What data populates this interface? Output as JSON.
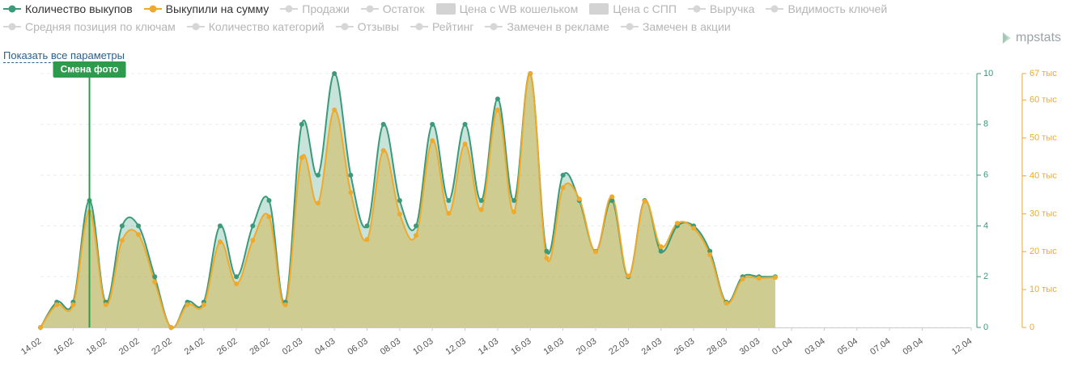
{
  "chart_data": {
    "type": "line",
    "categories": [
      "14.02",
      null,
      "16.02",
      null,
      "18.02",
      null,
      "20.02",
      null,
      "22.02",
      null,
      "24.02",
      null,
      "26.02",
      null,
      "28.02",
      null,
      "02.03",
      null,
      "04.03",
      null,
      "06.03",
      null,
      "08.03",
      null,
      "10.03",
      null,
      "12.03",
      null,
      "14.03",
      null,
      "16.03",
      null,
      "18.03",
      null,
      "20.03",
      null,
      "22.03",
      null,
      "24.03",
      null,
      "26.03",
      null,
      "28.03",
      null,
      "30.03",
      null,
      "01.04",
      null,
      "03.04",
      null,
      "05.04",
      null,
      "07.04",
      null,
      "09.04",
      null,
      null,
      "12.04"
    ],
    "series": [
      {
        "name": "Количество выкупов",
        "color": "#3a9a7a",
        "values": [
          0,
          1,
          1,
          5,
          1,
          4,
          4,
          2,
          0,
          1,
          1,
          4,
          2,
          4,
          5,
          1,
          8,
          6,
          10,
          6,
          4,
          8,
          5,
          4,
          8,
          5,
          8,
          5,
          9,
          5,
          10,
          3,
          6,
          5,
          3,
          5,
          2,
          5,
          3,
          4,
          4,
          3,
          1,
          2,
          2,
          2,
          null,
          null,
          null,
          null,
          null,
          null,
          null,
          null,
          null,
          null,
          null,
          null
        ]
      },
      {
        "name": "Выкупили на сумму",
        "color": "#f0a92a",
        "axis": "y2",
        "values": [
          0,
          6000,
          6000,
          30500,
          6000,
          23000,
          24500,
          12000,
          0,
          6000,
          6000,
          22600,
          11500,
          23000,
          29200,
          6000,
          44800,
          32800,
          57400,
          35600,
          23200,
          46700,
          29900,
          24300,
          49300,
          30100,
          48400,
          31100,
          57400,
          30500,
          67000,
          18300,
          36900,
          33900,
          20000,
          34500,
          13600,
          33300,
          21300,
          27500,
          26200,
          19200,
          6400,
          12800,
          13000,
          13200,
          null,
          null,
          null,
          null,
          null,
          null,
          null,
          null,
          null,
          null,
          null,
          null
        ]
      }
    ],
    "inactive_series": [
      {
        "name": "Продажи",
        "icon": "line"
      },
      {
        "name": "Остаток",
        "icon": "line"
      },
      {
        "name": "Цена с WB кошельком",
        "icon": "square"
      },
      {
        "name": "Цена с СПП",
        "icon": "square"
      },
      {
        "name": "Выручка",
        "icon": "line"
      },
      {
        "name": "Видимость ключей",
        "icon": "line"
      },
      {
        "name": "Средняя позиция по ключам",
        "icon": "line"
      },
      {
        "name": "Количество категорий",
        "icon": "line"
      },
      {
        "name": "Отзывы",
        "icon": "line"
      },
      {
        "name": "Рейтинг",
        "icon": "line"
      },
      {
        "name": "Замечен в рекламе",
        "icon": "line"
      },
      {
        "name": "Замечен в акции",
        "icon": "line"
      }
    ],
    "ylim": [
      0,
      10
    ],
    "yticks": [
      0,
      2,
      4,
      6,
      8,
      10
    ],
    "y2lim": [
      0,
      67000
    ],
    "y2ticks": [
      0,
      {
        "value": 10000,
        "label": "10 тыс"
      },
      {
        "value": 20000,
        "label": "20 тыс"
      },
      {
        "value": 30000,
        "label": "30 тыс"
      },
      {
        "value": 40000,
        "label": "40 тыс"
      },
      {
        "value": 50000,
        "label": "50 тыс"
      },
      {
        "value": 60000,
        "label": "60 тыс"
      },
      {
        "value": 67000,
        "label": "67 тыс"
      }
    ],
    "grid": true,
    "annotations": [
      {
        "text": "Смена фото",
        "category_index": 3,
        "color": "#2e9a4e"
      }
    ],
    "show_all_link": "Показать все параметры",
    "logo": "mpstats"
  }
}
